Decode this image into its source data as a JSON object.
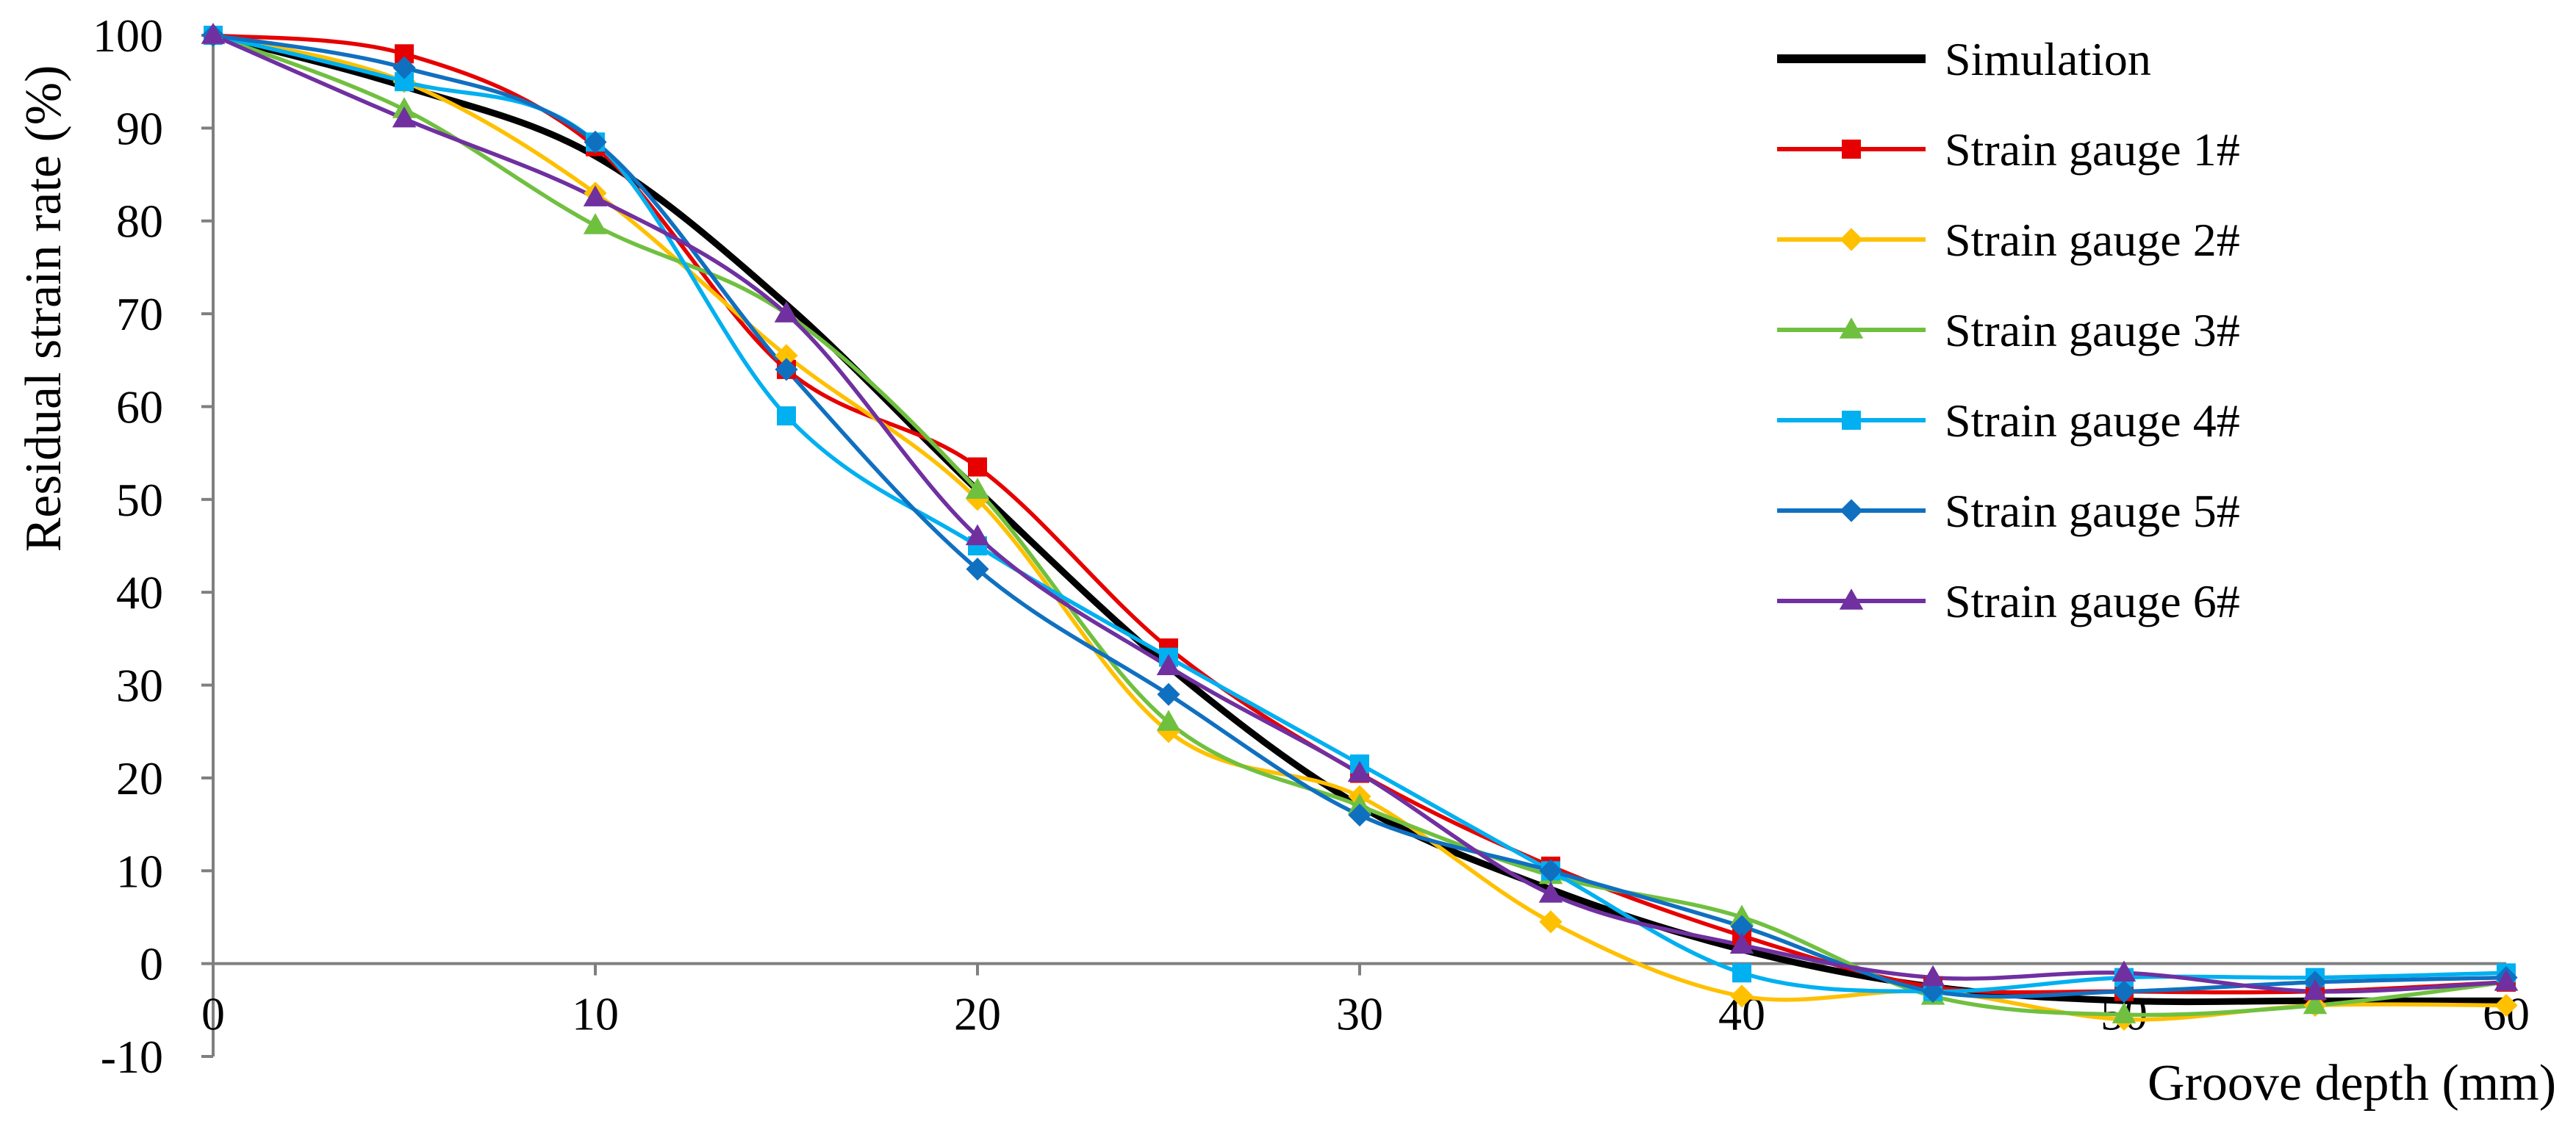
{
  "chart_data": {
    "type": "line",
    "title": "",
    "xlabel": "Groove depth (mm)",
    "ylabel": "Residual strain rate (%)",
    "xlim": [
      0,
      60
    ],
    "ylim": [
      -10,
      100
    ],
    "x_ticks": [
      0,
      10,
      20,
      30,
      40,
      50,
      60
    ],
    "y_ticks": [
      -10,
      0,
      10,
      20,
      30,
      40,
      50,
      60,
      70,
      80,
      90,
      100
    ],
    "grid": false,
    "legend_position": "top-right",
    "smoothed": true,
    "x": [
      0,
      5,
      10,
      15,
      20,
      25,
      30,
      35,
      40,
      45,
      50,
      55,
      60
    ],
    "series": [
      {
        "name": "Simulation",
        "color": "#000000",
        "marker": "none",
        "values": [
          100,
          94.5,
          87,
          71,
          51,
          32,
          17,
          8,
          1.5,
          -2.5,
          -4,
          -4,
          -4
        ]
      },
      {
        "name": "Strain gauge 1#",
        "color": "#e60000",
        "marker": "square",
        "values": [
          100,
          98,
          88,
          64,
          53.5,
          34,
          20.5,
          10.5,
          3,
          -2.5,
          -3,
          -3,
          -2
        ]
      },
      {
        "name": "Strain gauge 2#",
        "color": "#ffc000",
        "marker": "diamond",
        "values": [
          100,
          95,
          83,
          65.5,
          50,
          25,
          18,
          4.5,
          -3.5,
          -3,
          -6,
          -4.5,
          -4.5
        ]
      },
      {
        "name": "Strain gauge 3#",
        "color": "#70c040",
        "marker": "triangle",
        "values": [
          100,
          92,
          79.5,
          70,
          51,
          26,
          17,
          9.5,
          5,
          -3.5,
          -5.5,
          -4.5,
          -2
        ]
      },
      {
        "name": "Strain gauge 4#",
        "color": "#00b0f0",
        "marker": "square",
        "values": [
          100,
          95,
          88.5,
          59,
          45,
          33,
          21.5,
          10,
          -1,
          -3,
          -1.5,
          -1.5,
          -1
        ]
      },
      {
        "name": "Strain gauge 5#",
        "color": "#1070c0",
        "marker": "diamond",
        "values": [
          100,
          96.5,
          88.5,
          64,
          42.5,
          29,
          16,
          10,
          4,
          -3,
          -3,
          -2,
          -1.5
        ]
      },
      {
        "name": "Strain gauge 6#",
        "color": "#7030a0",
        "marker": "triangle",
        "values": [
          100,
          91,
          82.5,
          70,
          46,
          32,
          20.5,
          7.5,
          2,
          -1.5,
          -1,
          -3,
          -2
        ]
      }
    ]
  }
}
